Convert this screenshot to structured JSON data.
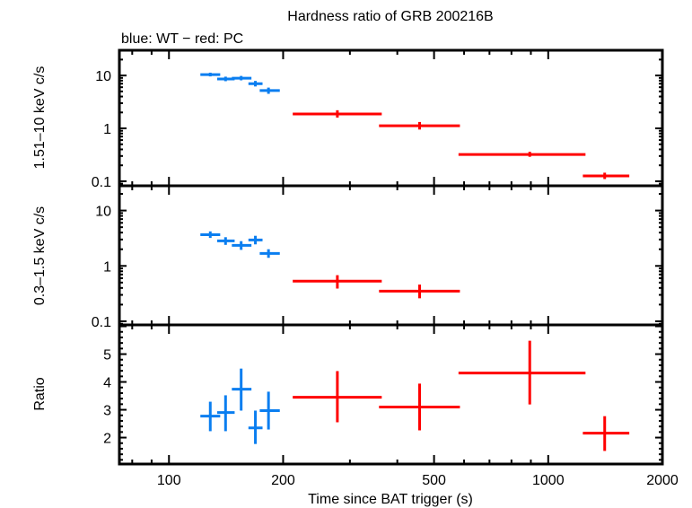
{
  "chart_data": {
    "type": "scatter",
    "title": "Hardness ratio of GRB 200216B",
    "subtitle": "blue: WT − red: PC",
    "xlabel": "Time since BAT trigger (s)",
    "xscale": "log",
    "xlim": [
      74,
      2000
    ],
    "xticks": [
      100,
      200,
      500,
      1000,
      2000
    ],
    "xtick_labels": [
      "100",
      "200",
      "500",
      "1000",
      "2000"
    ],
    "colors": {
      "WT": "#0a7ef0",
      "PC": "#ff0000",
      "axis": "#000000"
    },
    "panels": [
      {
        "name": "hard-band",
        "ylabel": "1.51–10 keV c/s",
        "yscale": "log",
        "ylim": [
          0.082,
          30
        ],
        "yticks": [
          0.1,
          1,
          10
        ],
        "ytick_labels": [
          "0.1",
          "1",
          "10"
        ],
        "series": [
          {
            "name": "WT",
            "points": [
              {
                "x": 128.5,
                "xlo": 121,
                "xhi": 136.5,
                "y": 10.4,
                "ylo": 9.6,
                "yhi": 11.3
              },
              {
                "x": 141,
                "xlo": 134,
                "xhi": 149,
                "y": 8.6,
                "ylo": 7.8,
                "yhi": 9.5
              },
              {
                "x": 155,
                "xlo": 146.5,
                "xhi": 165,
                "y": 8.9,
                "ylo": 8.1,
                "yhi": 9.8
              },
              {
                "x": 169,
                "xlo": 162,
                "xhi": 176.5,
                "y": 7.0,
                "ylo": 6.2,
                "yhi": 7.9
              },
              {
                "x": 183,
                "xlo": 173.5,
                "xhi": 196,
                "y": 5.2,
                "ylo": 4.5,
                "yhi": 5.9
              }
            ]
          },
          {
            "name": "PC",
            "points": [
              {
                "x": 278,
                "xlo": 212,
                "xhi": 364,
                "y": 1.87,
                "ylo": 1.6,
                "yhi": 2.2
              },
              {
                "x": 458,
                "xlo": 358,
                "xhi": 585,
                "y": 1.12,
                "ylo": 0.95,
                "yhi": 1.32
              },
              {
                "x": 894,
                "xlo": 580,
                "xhi": 1254,
                "y": 0.32,
                "ylo": 0.29,
                "yhi": 0.36
              },
              {
                "x": 1409,
                "xlo": 1234,
                "xhi": 1636,
                "y": 0.126,
                "ylo": 0.11,
                "yhi": 0.145
              }
            ]
          }
        ]
      },
      {
        "name": "soft-band",
        "ylabel": "0.3–1.5 keV c/s",
        "yscale": "log",
        "ylim": [
          0.086,
          28
        ],
        "yticks": [
          0.1,
          1,
          10
        ],
        "ytick_labels": [
          "0.1",
          "1",
          "10"
        ],
        "series": [
          {
            "name": "WT",
            "points": [
              {
                "x": 128.5,
                "xlo": 121,
                "xhi": 136.5,
                "y": 3.67,
                "ylo": 3.2,
                "yhi": 4.2
              },
              {
                "x": 141,
                "xlo": 134,
                "xhi": 149,
                "y": 2.83,
                "ylo": 2.4,
                "yhi": 3.3
              },
              {
                "x": 155,
                "xlo": 146.5,
                "xhi": 165,
                "y": 2.35,
                "ylo": 1.95,
                "yhi": 2.8
              },
              {
                "x": 169,
                "xlo": 162,
                "xhi": 176.5,
                "y": 2.94,
                "ylo": 2.45,
                "yhi": 3.5
              },
              {
                "x": 183,
                "xlo": 173.5,
                "xhi": 196,
                "y": 1.68,
                "ylo": 1.4,
                "yhi": 2.0
              }
            ]
          },
          {
            "name": "PC",
            "points": [
              {
                "x": 278,
                "xlo": 212,
                "xhi": 364,
                "y": 0.53,
                "ylo": 0.39,
                "yhi": 0.68
              },
              {
                "x": 458,
                "xlo": 358,
                "xhi": 585,
                "y": 0.35,
                "ylo": 0.26,
                "yhi": 0.46
              }
            ]
          }
        ]
      },
      {
        "name": "ratio",
        "ylabel": "Ratio",
        "yscale": "linear",
        "ylim": [
          1.05,
          6.05
        ],
        "yticks": [
          2,
          3,
          4,
          5
        ],
        "ytick_labels": [
          "2",
          "3",
          "4",
          "5"
        ],
        "series": [
          {
            "name": "WT",
            "points": [
              {
                "x": 128.5,
                "xlo": 121,
                "xhi": 136.5,
                "y": 2.77,
                "ylo": 2.23,
                "yhi": 3.29
              },
              {
                "x": 141,
                "xlo": 134,
                "xhi": 149,
                "y": 2.9,
                "ylo": 2.23,
                "yhi": 3.52
              },
              {
                "x": 155,
                "xlo": 146.5,
                "xhi": 165,
                "y": 3.74,
                "ylo": 2.97,
                "yhi": 4.48
              },
              {
                "x": 169,
                "xlo": 162,
                "xhi": 176.5,
                "y": 2.35,
                "ylo": 1.77,
                "yhi": 2.97
              },
              {
                "x": 183,
                "xlo": 173.5,
                "xhi": 196,
                "y": 2.97,
                "ylo": 2.29,
                "yhi": 3.65
              }
            ]
          },
          {
            "name": "PC",
            "points": [
              {
                "x": 278,
                "xlo": 212,
                "xhi": 364,
                "y": 3.45,
                "ylo": 2.55,
                "yhi": 4.39
              },
              {
                "x": 458,
                "xlo": 358,
                "xhi": 585,
                "y": 3.1,
                "ylo": 2.26,
                "yhi": 3.94
              },
              {
                "x": 894,
                "xlo": 580,
                "xhi": 1254,
                "y": 4.32,
                "ylo": 3.19,
                "yhi": 5.48
              },
              {
                "x": 1409,
                "xlo": 1234,
                "xhi": 1636,
                "y": 2.16,
                "ylo": 1.52,
                "yhi": 2.77
              }
            ]
          }
        ]
      }
    ]
  }
}
